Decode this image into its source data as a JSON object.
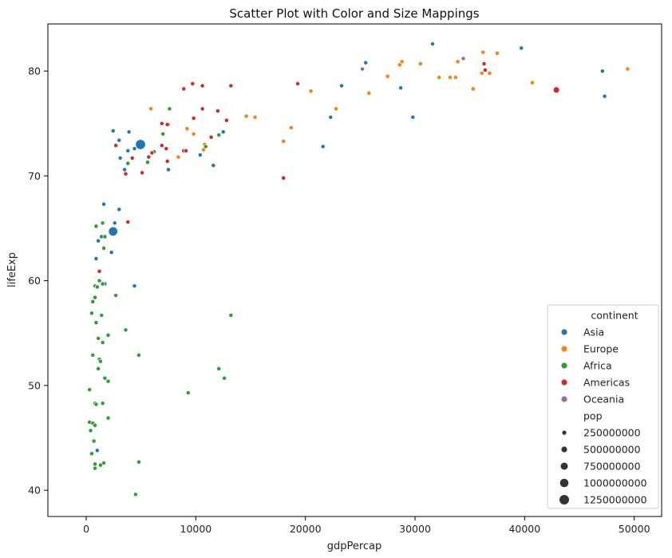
{
  "chart_data": {
    "type": "scatter",
    "title": "Scatter Plot with Color and Size Mappings",
    "xlabel": "gdpPercap",
    "ylabel": "lifeExp",
    "xlim": [
      -3500,
      52500
    ],
    "ylim": [
      37.5,
      84.5
    ],
    "xticks": [
      0,
      10000,
      20000,
      30000,
      40000,
      50000
    ],
    "yticks": [
      40,
      50,
      60,
      70,
      80
    ],
    "grid": false,
    "legend": {
      "placement": "lower-right",
      "hue_title": "continent",
      "hue_entries": [
        {
          "name": "Asia",
          "color": "#1f77b4"
        },
        {
          "name": "Europe",
          "color": "#ff7f0e"
        },
        {
          "name": "Africa",
          "color": "#2ca02c"
        },
        {
          "name": "Americas",
          "color": "#d62728"
        },
        {
          "name": "Oceania",
          "color": "#9467bd"
        }
      ],
      "size_title": "pop",
      "size_entries": [
        "250000000",
        "500000000",
        "750000000",
        "1000000000",
        "1250000000"
      ]
    },
    "series": [
      {
        "name": "Asia",
        "color": "#1f77b4",
        "points": [
          {
            "x": 2450,
            "y": 74.3
          },
          {
            "x": 3000,
            "y": 73.4
          },
          {
            "x": 3100,
            "y": 71.7
          },
          {
            "x": 3900,
            "y": 74.2
          },
          {
            "x": 3800,
            "y": 72.4
          },
          {
            "x": 4400,
            "y": 72.6
          },
          {
            "x": 3500,
            "y": 70.6
          },
          {
            "x": 4950,
            "y": 73.0,
            "pop": 1318000000
          },
          {
            "x": 7500,
            "y": 70.6
          },
          {
            "x": 10400,
            "y": 72.0
          },
          {
            "x": 11600,
            "y": 71.0
          },
          {
            "x": 12500,
            "y": 74.2
          },
          {
            "x": 1600,
            "y": 67.3
          },
          {
            "x": 3000,
            "y": 66.8
          },
          {
            "x": 2600,
            "y": 65.5
          },
          {
            "x": 2450,
            "y": 64.7,
            "pop": 1110000000
          },
          {
            "x": 1400,
            "y": 64.2
          },
          {
            "x": 1100,
            "y": 63.8
          },
          {
            "x": 2300,
            "y": 62.7
          },
          {
            "x": 900,
            "y": 62.1
          },
          {
            "x": 1700,
            "y": 59.7
          },
          {
            "x": 4400,
            "y": 59.5
          },
          {
            "x": 1000,
            "y": 43.8
          },
          {
            "x": 21600,
            "y": 72.8
          },
          {
            "x": 22300,
            "y": 75.6
          },
          {
            "x": 23300,
            "y": 78.6
          },
          {
            "x": 25500,
            "y": 80.8
          },
          {
            "x": 28700,
            "y": 78.4
          },
          {
            "x": 29800,
            "y": 75.6
          },
          {
            "x": 31600,
            "y": 82.6
          },
          {
            "x": 39700,
            "y": 82.2
          },
          {
            "x": 47100,
            "y": 80.0
          },
          {
            "x": 47300,
            "y": 77.6
          }
        ]
      },
      {
        "name": "Europe",
        "color": "#ff7f0e",
        "points": [
          {
            "x": 5900,
            "y": 76.4
          },
          {
            "x": 7500,
            "y": 74.9
          },
          {
            "x": 9200,
            "y": 74.5
          },
          {
            "x": 9800,
            "y": 74.0
          },
          {
            "x": 10700,
            "y": 72.5
          },
          {
            "x": 10800,
            "y": 73.0
          },
          {
            "x": 8400,
            "y": 71.8
          },
          {
            "x": 14600,
            "y": 75.7
          },
          {
            "x": 15400,
            "y": 75.6
          },
          {
            "x": 18000,
            "y": 73.3
          },
          {
            "x": 18700,
            "y": 74.6
          },
          {
            "x": 20500,
            "y": 78.1
          },
          {
            "x": 22800,
            "y": 76.4
          },
          {
            "x": 25800,
            "y": 77.9
          },
          {
            "x": 27500,
            "y": 79.5
          },
          {
            "x": 28600,
            "y": 80.6
          },
          {
            "x": 28800,
            "y": 80.9
          },
          {
            "x": 30500,
            "y": 80.7
          },
          {
            "x": 32200,
            "y": 79.4
          },
          {
            "x": 33200,
            "y": 79.4
          },
          {
            "x": 33700,
            "y": 79.4
          },
          {
            "x": 33900,
            "y": 80.9
          },
          {
            "x": 35300,
            "y": 78.3
          },
          {
            "x": 36100,
            "y": 79.8
          },
          {
            "x": 36200,
            "y": 81.8
          },
          {
            "x": 36800,
            "y": 79.8
          },
          {
            "x": 37500,
            "y": 81.7
          },
          {
            "x": 40700,
            "y": 78.9
          },
          {
            "x": 49400,
            "y": 80.2
          }
        ]
      },
      {
        "name": "Africa",
        "color": "#2ca02c",
        "points": [
          {
            "x": 7600,
            "y": 76.4
          },
          {
            "x": 7000,
            "y": 74.0
          },
          {
            "x": 12100,
            "y": 73.9
          },
          {
            "x": 10900,
            "y": 72.8
          },
          {
            "x": 6200,
            "y": 72.3
          },
          {
            "x": 5600,
            "y": 71.3
          },
          {
            "x": 3800,
            "y": 71.2
          },
          {
            "x": 1500,
            "y": 65.5
          },
          {
            "x": 900,
            "y": 65.2
          },
          {
            "x": 1700,
            "y": 64.2
          },
          {
            "x": 1600,
            "y": 63.1
          },
          {
            "x": 1200,
            "y": 60.0
          },
          {
            "x": 1500,
            "y": 59.7
          },
          {
            "x": 2700,
            "y": 58.6
          },
          {
            "x": 800,
            "y": 59.5
          },
          {
            "x": 1000,
            "y": 59.4
          },
          {
            "x": 800,
            "y": 58.4
          },
          {
            "x": 600,
            "y": 58.0
          },
          {
            "x": 500,
            "y": 56.9
          },
          {
            "x": 1400,
            "y": 56.7
          },
          {
            "x": 900,
            "y": 56.0
          },
          {
            "x": 3600,
            "y": 55.3
          },
          {
            "x": 2000,
            "y": 54.8
          },
          {
            "x": 1100,
            "y": 54.5
          },
          {
            "x": 1500,
            "y": 54.1
          },
          {
            "x": 4800,
            "y": 52.9
          },
          {
            "x": 600,
            "y": 52.9
          },
          {
            "x": 1200,
            "y": 52.5
          },
          {
            "x": 1300,
            "y": 52.3
          },
          {
            "x": 1100,
            "y": 51.6
          },
          {
            "x": 12100,
            "y": 51.6
          },
          {
            "x": 12600,
            "y": 50.7
          },
          {
            "x": 1700,
            "y": 50.7
          },
          {
            "x": 2000,
            "y": 50.4
          },
          {
            "x": 300,
            "y": 49.6
          },
          {
            "x": 9300,
            "y": 49.3
          },
          {
            "x": 800,
            "y": 48.3
          },
          {
            "x": 900,
            "y": 48.2
          },
          {
            "x": 1500,
            "y": 48.3
          },
          {
            "x": 2000,
            "y": 46.9
          },
          {
            "x": 300,
            "y": 46.5
          },
          {
            "x": 600,
            "y": 46.4
          },
          {
            "x": 800,
            "y": 46.2
          },
          {
            "x": 400,
            "y": 45.7
          },
          {
            "x": 700,
            "y": 44.7
          },
          {
            "x": 500,
            "y": 43.5
          },
          {
            "x": 4800,
            "y": 42.7
          },
          {
            "x": 1600,
            "y": 42.6
          },
          {
            "x": 800,
            "y": 42.5
          },
          {
            "x": 1300,
            "y": 42.4
          },
          {
            "x": 800,
            "y": 42.1
          },
          {
            "x": 4500,
            "y": 39.6
          },
          {
            "x": 13200,
            "y": 56.7
          }
        ]
      },
      {
        "name": "Americas",
        "color": "#d62728",
        "points": [
          {
            "x": 9700,
            "y": 78.8
          },
          {
            "x": 10600,
            "y": 78.6
          },
          {
            "x": 8900,
            "y": 78.3
          },
          {
            "x": 13200,
            "y": 78.6
          },
          {
            "x": 19300,
            "y": 78.8
          },
          {
            "x": 9800,
            "y": 75.5
          },
          {
            "x": 10600,
            "y": 76.4
          },
          {
            "x": 12000,
            "y": 76.2
          },
          {
            "x": 12800,
            "y": 75.3
          },
          {
            "x": 6900,
            "y": 75.0
          },
          {
            "x": 7400,
            "y": 74.9
          },
          {
            "x": 11400,
            "y": 73.7
          },
          {
            "x": 6900,
            "y": 72.9
          },
          {
            "x": 7300,
            "y": 72.6
          },
          {
            "x": 2700,
            "y": 72.9
          },
          {
            "x": 5700,
            "y": 71.8
          },
          {
            "x": 6000,
            "y": 72.2
          },
          {
            "x": 4200,
            "y": 71.7
          },
          {
            "x": 8900,
            "y": 72.4
          },
          {
            "x": 9100,
            "y": 72.4
          },
          {
            "x": 7400,
            "y": 71.4
          },
          {
            "x": 5100,
            "y": 70.3
          },
          {
            "x": 3600,
            "y": 70.2
          },
          {
            "x": 18000,
            "y": 69.8
          },
          {
            "x": 3800,
            "y": 65.6
          },
          {
            "x": 1200,
            "y": 60.9
          },
          {
            "x": 36300,
            "y": 80.7
          },
          {
            "x": 36400,
            "y": 80.1
          },
          {
            "x": 42900,
            "y": 78.2,
            "pop": 301000000
          }
        ]
      },
      {
        "name": "Oceania",
        "color": "#9467bd",
        "points": [
          {
            "x": 25200,
            "y": 80.2
          },
          {
            "x": 34400,
            "y": 81.2
          }
        ]
      }
    ]
  }
}
